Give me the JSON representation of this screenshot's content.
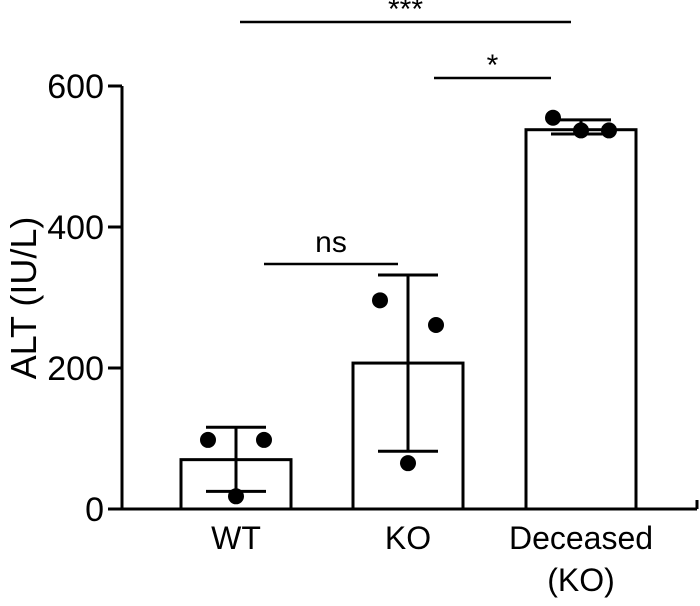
{
  "chart_data": {
    "type": "bar",
    "title": "",
    "ylabel": "ALT (IU/L)",
    "xlabel": "",
    "ylim": [
      0,
      600
    ],
    "yticks": [
      "0",
      "200",
      "400",
      "600"
    ],
    "categories": [
      {
        "line1": "WT",
        "line2": ""
      },
      {
        "line1": "KO",
        "line2": ""
      },
      {
        "line1": "Deceased",
        "line2": "(KO)"
      }
    ],
    "values": [
      70,
      207,
      538
    ],
    "errors": [
      {
        "low": 25,
        "high": 116
      },
      {
        "low": 82,
        "high": 332
      },
      {
        "low": 532,
        "high": 552
      }
    ],
    "points": [
      [
        [
          -0.5,
          98
        ],
        [
          0.0,
          18
        ],
        [
          0.5,
          98
        ]
      ],
      [
        [
          -0.5,
          296
        ],
        [
          0.0,
          65
        ],
        [
          0.5,
          261
        ]
      ],
      [
        [
          -0.5,
          555
        ],
        [
          0.0,
          537
        ],
        [
          0.5,
          537
        ]
      ]
    ],
    "comparisons": [
      {
        "from": 0,
        "to": 1,
        "label": "ns",
        "level": "low"
      },
      {
        "from": 1,
        "to": 2,
        "label": "*",
        "level": "mid"
      },
      {
        "from": 0,
        "to": 2,
        "label": "***",
        "level": "top"
      }
    ]
  }
}
